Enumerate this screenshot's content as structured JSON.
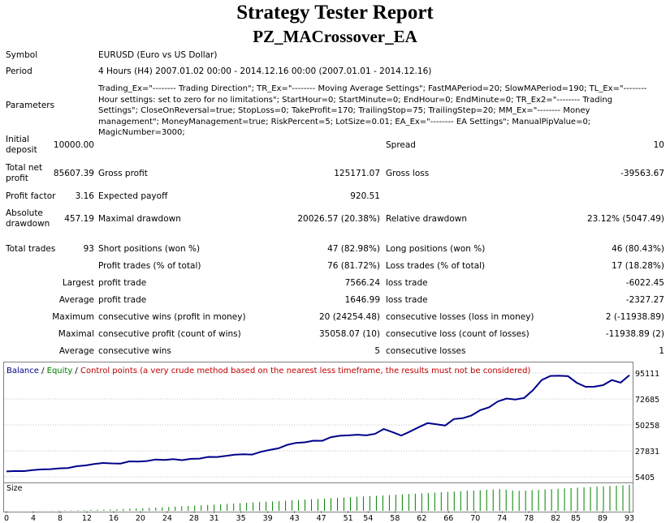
{
  "header": {
    "title": "Strategy Tester Report",
    "ea_name": "PZ_MACrossover_EA"
  },
  "info": {
    "symbol_label": "Symbol",
    "symbol_value": "EURUSD (Euro vs US Dollar)",
    "period_label": "Period",
    "period_value": "4 Hours (H4) 2007.01.02 00:00 - 2014.12.16 00:00 (2007.01.01 - 2014.12.16)",
    "parameters_label": "Parameters",
    "parameters_value": "Trading_Ex=\"-------- Trading Direction\"; TR_Ex=\"-------- Moving Average Settings\"; FastMAPeriod=20; SlowMAPeriod=190; TL_Ex=\"-------- Hour settings: set to zero for no limitations\"; StartHour=0; StartMinute=0; EndHour=0; EndMinute=0; TR_Ex2=\"-------- Trading Settings\"; CloseOnReversal=true; StopLoss=0; TakeProfit=170; TrailingStop=75; TrailingStep=20; MM_Ex=\"-------- Money management\"; MoneyManagement=true; RiskPercent=5; LotSize=0.01; EA_Ex=\"-------- EA Settings\"; ManualPipValue=0; MagicNumber=3000;"
  },
  "stats": {
    "initial_deposit_label": "Initial deposit",
    "initial_deposit": "10000.00",
    "spread_label": "Spread",
    "spread": "10",
    "total_net_profit_label": "Total net profit",
    "total_net_profit": "85607.39",
    "gross_profit_label": "Gross profit",
    "gross_profit": "125171.07",
    "gross_loss_label": "Gross loss",
    "gross_loss": "-39563.67",
    "profit_factor_label": "Profit factor",
    "profit_factor": "3.16",
    "expected_payoff_label": "Expected payoff",
    "expected_payoff": "920.51",
    "absolute_drawdown_label": "Absolute drawdown",
    "absolute_drawdown": "457.19",
    "maximal_drawdown_label": "Maximal drawdown",
    "maximal_drawdown": "20026.57 (20.38%)",
    "relative_drawdown_label": "Relative drawdown",
    "relative_drawdown": "23.12% (5047.49)",
    "total_trades_label": "Total trades",
    "total_trades": "93",
    "short_positions_label": "Short positions (won %)",
    "short_positions": "47 (82.98%)",
    "long_positions_label": "Long positions (won %)",
    "long_positions": "46 (80.43%)",
    "profit_trades_label": "Profit trades (% of total)",
    "profit_trades": "76 (81.72%)",
    "loss_trades_label": "Loss trades (% of total)",
    "loss_trades": "17 (18.28%)",
    "largest_label": "Largest",
    "largest_profit_label": "profit trade",
    "largest_profit": "7566.24",
    "largest_loss_label": "loss trade",
    "largest_loss": "-6022.45",
    "average_label": "Average",
    "average_profit_label": "profit trade",
    "average_profit": "1646.99",
    "average_loss_label": "loss trade",
    "average_loss": "-2327.27",
    "maximum_label": "Maximum",
    "max_cons_wins_label": "consecutive wins (profit in money)",
    "max_cons_wins": "20 (24254.48)",
    "max_cons_losses_label": "consecutive losses (loss in money)",
    "max_cons_losses": "2 (-11938.89)",
    "maximal_label": "Maximal",
    "maximal_cons_profit_label": "consecutive profit (count of wins)",
    "maximal_cons_profit": "35058.07 (10)",
    "maximal_cons_loss_label": "consecutive loss (count of losses)",
    "maximal_cons_loss": "-11938.89 (2)",
    "avg_label": "Average",
    "avg_cons_wins_label": "consecutive wins",
    "avg_cons_wins": "5",
    "avg_cons_losses_label": "consecutive losses",
    "avg_cons_losses": "1"
  },
  "legend": {
    "balance": "Balance",
    "sep1": " / ",
    "equity": "Equity",
    "sep2": " / ",
    "control": "Control points (a very crude method based on the nearest less timeframe, the results must not be considered)"
  },
  "size_label": "Size",
  "colors": {
    "balance": "#00008b",
    "equity": "#008000",
    "control": "#c00000",
    "grid": "#c0c0c0"
  },
  "chart_data": {
    "type": "line",
    "title": "",
    "xlabel": "",
    "ylabel": "",
    "x_ticks": [
      0,
      4,
      8,
      12,
      16,
      20,
      24,
      28,
      31,
      35,
      39,
      43,
      47,
      51,
      54,
      58,
      62,
      66,
      70,
      74,
      78,
      82,
      85,
      89,
      93
    ],
    "y_ticks": [
      5405,
      27831,
      50258,
      72685,
      95111
    ],
    "ylim": [
      5405,
      95111
    ],
    "xlim": [
      0,
      93
    ],
    "series": [
      {
        "name": "Balance",
        "values": [
          10000,
          10400,
          10300,
          11200,
          11800,
          12000,
          12700,
          13000,
          14500,
          15200,
          16400,
          17300,
          17000,
          16800,
          18700,
          18600,
          19000,
          20300,
          20000,
          20700,
          19800,
          20900,
          21100,
          22600,
          22500,
          23400,
          24500,
          24900,
          24600,
          27000,
          28600,
          30000,
          33000,
          34700,
          35200,
          36600,
          36500,
          39700,
          40900,
          41200,
          41800,
          41200,
          42500,
          46700,
          44000,
          41000,
          44500,
          48300,
          51800,
          50800,
          49700,
          55300,
          56000,
          58400,
          63000,
          65500,
          70500,
          73000,
          72200,
          73500,
          80200,
          89000,
          92600,
          92700,
          92400,
          86600,
          83200,
          83300,
          84600,
          89000,
          86800,
          93200
        ]
      }
    ],
    "size_series": [
      {
        "name": "Size",
        "values": [
          0.3,
          0.4,
          0.5,
          0.6,
          0.7,
          0.8,
          1,
          1.2,
          1.4,
          1.6,
          1.8,
          2,
          2.3,
          2.6,
          3,
          3.4,
          3.8,
          4.2,
          4.6,
          5,
          5.5,
          6,
          6.5,
          7,
          7.5,
          8,
          8.5,
          9,
          9.5,
          10,
          10.5,
          11,
          11.5,
          12,
          12.5,
          13,
          13.5,
          14,
          14.5,
          15,
          15.5,
          16,
          16.5,
          17,
          17.5,
          18,
          18.5,
          19,
          19.5,
          20,
          20.5,
          21,
          21.5,
          22,
          22.5,
          23,
          23.5,
          24,
          24.5,
          25,
          25.5,
          26,
          26.5,
          27,
          27.5,
          28,
          28.5,
          29,
          29.5,
          30,
          30.5,
          31,
          30,
          29,
          28.5,
          29,
          29.5,
          30,
          30.5,
          31,
          31.5,
          32,
          32.5,
          33,
          33.5,
          34,
          34.5,
          35,
          35.5,
          36,
          36.5,
          37
        ]
      }
    ]
  }
}
